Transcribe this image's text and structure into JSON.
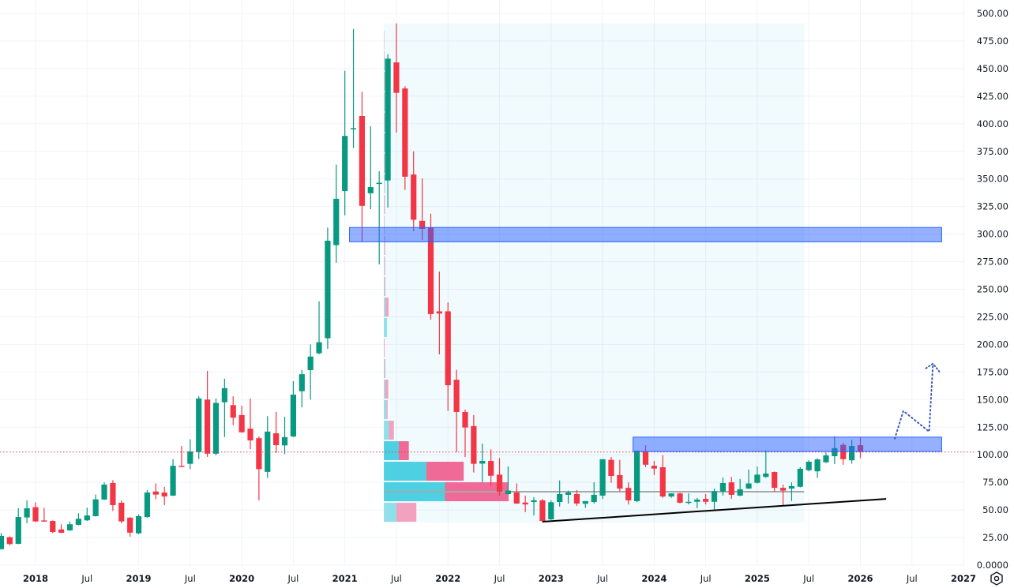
{
  "chart_data": {
    "type": "candlestick",
    "interval": "monthly",
    "colors": {
      "up": "#089981",
      "down": "#f23645",
      "zone": "#2962ff",
      "trendline": "#000000",
      "poc": "#a8a8a8",
      "projection": "#3d5db8",
      "last_price": "#f23645"
    },
    "y_axis": {
      "ylim": [
        0,
        500
      ],
      "ticks": [
        "0.0000",
        "25.00",
        "50.00",
        "75.00",
        "100.00",
        "125.00",
        "150.00",
        "175.00",
        "200.00",
        "225.00",
        "250.00",
        "275.00",
        "300.00",
        "325.00",
        "350.00",
        "375.00",
        "400.00",
        "425.00",
        "450.00",
        "475.00",
        "500.00"
      ]
    },
    "x_axis": {
      "xlim": [
        "2017-09",
        "2027-01"
      ],
      "ticks": [
        {
          "date": "2018-01",
          "label": "2018",
          "bold": true
        },
        {
          "date": "2018-07",
          "label": "Jul",
          "bold": false
        },
        {
          "date": "2019-01",
          "label": "2019",
          "bold": true
        },
        {
          "date": "2019-07",
          "label": "Jul",
          "bold": false
        },
        {
          "date": "2020-01",
          "label": "2020",
          "bold": true
        },
        {
          "date": "2020-07",
          "label": "Jul",
          "bold": false
        },
        {
          "date": "2021-01",
          "label": "2021",
          "bold": true
        },
        {
          "date": "2021-07",
          "label": "Jul",
          "bold": false
        },
        {
          "date": "2022-01",
          "label": "2022",
          "bold": true
        },
        {
          "date": "2022-07",
          "label": "Jul",
          "bold": false
        },
        {
          "date": "2023-01",
          "label": "2023",
          "bold": true
        },
        {
          "date": "2023-07",
          "label": "Jul",
          "bold": false
        },
        {
          "date": "2024-01",
          "label": "2024",
          "bold": true
        },
        {
          "date": "2024-07",
          "label": "Jul",
          "bold": false
        },
        {
          "date": "2025-01",
          "label": "2025",
          "bold": true
        },
        {
          "date": "2025-07",
          "label": "Jul",
          "bold": false
        },
        {
          "date": "2026-01",
          "label": "2026",
          "bold": true
        },
        {
          "date": "2026-07",
          "label": "Jul",
          "bold": false
        },
        {
          "date": "2027-01",
          "label": "2027",
          "bold": true
        }
      ]
    },
    "grid": true,
    "last_price": 102.5,
    "candles_columns": [
      "date",
      "open",
      "high",
      "low",
      "close"
    ],
    "candles": [
      [
        "2017-09",
        14.5,
        29,
        14,
        26.5
      ],
      [
        "2017-10",
        25.3,
        26,
        18,
        19.1
      ],
      [
        "2017-11",
        19.3,
        51.5,
        19,
        43.6
      ],
      [
        "2017-12",
        43.2,
        58.7,
        37.9,
        51.5
      ],
      [
        "2018-01",
        52.5,
        57,
        39,
        39.6
      ],
      [
        "2018-02",
        40.5,
        52,
        39.5,
        40
      ],
      [
        "2018-03",
        40,
        40.5,
        29,
        30
      ],
      [
        "2018-04",
        32.4,
        37,
        29,
        29.3
      ],
      [
        "2018-05",
        31.5,
        39.5,
        31,
        37
      ],
      [
        "2018-06",
        36.5,
        47,
        36,
        42
      ],
      [
        "2018-07",
        40.6,
        52,
        40,
        45
      ],
      [
        "2018-08",
        44.4,
        64,
        44,
        59.6
      ],
      [
        "2018-09",
        59.4,
        75,
        59,
        73
      ],
      [
        "2018-10",
        74.4,
        77,
        49,
        54.4
      ],
      [
        "2018-11",
        56.5,
        58.7,
        38,
        39.6
      ],
      [
        "2018-12",
        43,
        43.5,
        25.8,
        29.4
      ],
      [
        "2019-01",
        28.8,
        46,
        28,
        44.4
      ],
      [
        "2019-02",
        43.6,
        68,
        43,
        65.8
      ],
      [
        "2019-03",
        66.7,
        74,
        59.6,
        63.9
      ],
      [
        "2019-04",
        65.8,
        71,
        54.4,
        62.2
      ],
      [
        "2019-05",
        63,
        96,
        62.5,
        90
      ],
      [
        "2019-06",
        90,
        108,
        89.5,
        89.6
      ],
      [
        "2019-07",
        91.8,
        114,
        87,
        103
      ],
      [
        "2019-08",
        102.5,
        153,
        96,
        151
      ],
      [
        "2019-09",
        150,
        176,
        98,
        101
      ],
      [
        "2019-10",
        101,
        151,
        99.6,
        147
      ],
      [
        "2019-11",
        147.6,
        169,
        116,
        160.4
      ],
      [
        "2019-12",
        145,
        153,
        126.8,
        133.6
      ],
      [
        "2020-01",
        136,
        144.5,
        120,
        120.4
      ],
      [
        "2020-02",
        123.7,
        151,
        105,
        113
      ],
      [
        "2020-03",
        115,
        116.6,
        58.7,
        87
      ],
      [
        "2020-04",
        84.5,
        135,
        79,
        121
      ],
      [
        "2020-05",
        119.5,
        139,
        101.6,
        108.7
      ],
      [
        "2020-06",
        108.5,
        134.5,
        100.7,
        116
      ],
      [
        "2020-07",
        116.6,
        166.7,
        116,
        154.5
      ],
      [
        "2020-08",
        157.6,
        177,
        143,
        173
      ],
      [
        "2020-09",
        176.7,
        200,
        150,
        189
      ],
      [
        "2020-10",
        192,
        239,
        191,
        202
      ],
      [
        "2020-11",
        205.6,
        306,
        196,
        294
      ],
      [
        "2020-12",
        290,
        363,
        274,
        332
      ],
      [
        "2021-01",
        339,
        448,
        317,
        389
      ],
      [
        "2021-02",
        395,
        486,
        378,
        396
      ],
      [
        "2021-03",
        407,
        429,
        293,
        325.6
      ],
      [
        "2021-04",
        337,
        397.7,
        322.6,
        342.6
      ],
      [
        "2021-05",
        346,
        357,
        272.5,
        346.5
      ],
      [
        "2021-06",
        348.6,
        463,
        324,
        459
      ],
      [
        "2021-07",
        455.6,
        491,
        392,
        428
      ],
      [
        "2021-08",
        432,
        434,
        340,
        352
      ],
      [
        "2021-09",
        354,
        375,
        302.6,
        313
      ],
      [
        "2021-10",
        312,
        350.5,
        294.7,
        304.7
      ],
      [
        "2021-11",
        306,
        318.5,
        222.5,
        227.5
      ],
      [
        "2021-12",
        230,
        266,
        191,
        228
      ],
      [
        "2022-01",
        230,
        238,
        139.7,
        163
      ],
      [
        "2022-02",
        168,
        177,
        102.5,
        138.8
      ],
      [
        "2022-03",
        138.8,
        141,
        98,
        124.7
      ],
      [
        "2022-04",
        126,
        136,
        84,
        91.8
      ],
      [
        "2022-05",
        92,
        110,
        75,
        94.4
      ],
      [
        "2022-06",
        94.4,
        105,
        72,
        81
      ],
      [
        "2022-07",
        82,
        97,
        63,
        66.5
      ],
      [
        "2022-08",
        64.4,
        89.4,
        63.7,
        67.5
      ],
      [
        "2022-09",
        65.8,
        74,
        55.5,
        55.8
      ],
      [
        "2022-10",
        56.7,
        63,
        48,
        55
      ],
      [
        "2022-11",
        57.2,
        61.5,
        45,
        58.7
      ],
      [
        "2022-12",
        58.7,
        60,
        38.8,
        40
      ],
      [
        "2023-01",
        41.5,
        58.7,
        41,
        57
      ],
      [
        "2023-02",
        57.2,
        76.7,
        53,
        64.4
      ],
      [
        "2023-03",
        63.7,
        67.5,
        55.8,
        65.8
      ],
      [
        "2023-04",
        64.4,
        68,
        53.8,
        55.8
      ],
      [
        "2023-05",
        55.6,
        58,
        52,
        58
      ],
      [
        "2023-06",
        57.2,
        75,
        55.8,
        63.7
      ],
      [
        "2023-07",
        63,
        96,
        60,
        96
      ],
      [
        "2023-08",
        95.4,
        98,
        74.6,
        80.8
      ],
      [
        "2023-09",
        81.6,
        95.4,
        67,
        69.4
      ],
      [
        "2023-10",
        70,
        75,
        55,
        58.7
      ],
      [
        "2023-11",
        58,
        103.7,
        57,
        103.7
      ],
      [
        "2023-12",
        103,
        108.7,
        88.7,
        91
      ],
      [
        "2024-01",
        90,
        94.4,
        81.6,
        87.5
      ],
      [
        "2024-02",
        88.7,
        99.6,
        61,
        62.2
      ],
      [
        "2024-03",
        62.2,
        65,
        61,
        65
      ],
      [
        "2024-04",
        65,
        65.5,
        56,
        56.5
      ],
      [
        "2024-05",
        57,
        65,
        55,
        57.4
      ],
      [
        "2024-06",
        57.4,
        61,
        51.5,
        59.4
      ],
      [
        "2024-07",
        60,
        64.4,
        55,
        57.4
      ],
      [
        "2024-08",
        57.4,
        69.4,
        49,
        67
      ],
      [
        "2024-09",
        66.7,
        79.4,
        63,
        74.4
      ],
      [
        "2024-10",
        75,
        80,
        60,
        63.7
      ],
      [
        "2024-11",
        63,
        78,
        62.5,
        68.7
      ],
      [
        "2024-12",
        69.4,
        86.6,
        69,
        74
      ],
      [
        "2025-01",
        74.6,
        89.4,
        74,
        82
      ],
      [
        "2025-02",
        80,
        104,
        79,
        83
      ],
      [
        "2025-03",
        84.4,
        84.8,
        66.5,
        70
      ],
      [
        "2025-04",
        70,
        73,
        54.4,
        67.5
      ],
      [
        "2025-05",
        69.4,
        75,
        58,
        71.6
      ],
      [
        "2025-06",
        71,
        88.7,
        70.5,
        87.3
      ],
      [
        "2025-07",
        86,
        95,
        85,
        93.7
      ],
      [
        "2025-08",
        85,
        97,
        79,
        95.8
      ],
      [
        "2025-09",
        93.2,
        102,
        92.5,
        99.4
      ],
      [
        "2025-10",
        98.7,
        116.8,
        91.6,
        106
      ],
      [
        "2025-11",
        109,
        111,
        91,
        96
      ],
      [
        "2025-12",
        95,
        113.7,
        92,
        108
      ],
      [
        "2026-01",
        108.7,
        116,
        97,
        102.5
      ]
    ],
    "zones": [
      {
        "from": "2021-02",
        "to": "2026-10",
        "low": 293,
        "high": 306
      },
      {
        "from": "2023-11",
        "to": "2026-10",
        "low": 103,
        "high": 116
      }
    ],
    "volume_profile": {
      "from": "2021-06",
      "to": "2025-06",
      "price_low": 38.6,
      "price_high": 491,
      "poc": 66.5,
      "rows_up_down": [
        [
          10,
          16
        ],
        [
          49,
          51
        ],
        [
          34,
          30
        ],
        [
          12,
          8
        ],
        [
          4,
          4
        ],
        [
          2,
          1
        ],
        [
          1,
          2.5
        ],
        [
          0.6,
          0.6
        ],
        [
          0,
          0.6
        ],
        [
          2.5,
          0
        ],
        [
          1.3,
          2.5
        ],
        [
          0.6,
          0.6
        ],
        [
          0.5,
          0.5
        ],
        [
          0.4,
          0.6
        ],
        [
          0.3,
          0.3
        ],
        [
          0.3,
          0.6
        ],
        [
          0.5,
          0.3
        ],
        [
          0.3,
          0.5
        ],
        [
          0.6,
          0.4
        ],
        [
          0.4,
          0.5
        ],
        [
          0.4,
          0.3
        ],
        [
          0.3,
          0.4
        ],
        [
          0.3,
          0.3
        ],
        [
          0.2,
          0.2
        ]
      ],
      "value_area_rows": [
        1,
        2,
        3
      ]
    },
    "trendline": {
      "from": [
        "2022-12",
        39.3
      ],
      "to": [
        "2026-04",
        60
      ]
    },
    "projection_path": [
      [
        "2026-05",
        114.6
      ],
      [
        "2026-06",
        139.7
      ],
      [
        "2026-09",
        121
      ],
      [
        "2026-10",
        182.6
      ]
    ]
  }
}
